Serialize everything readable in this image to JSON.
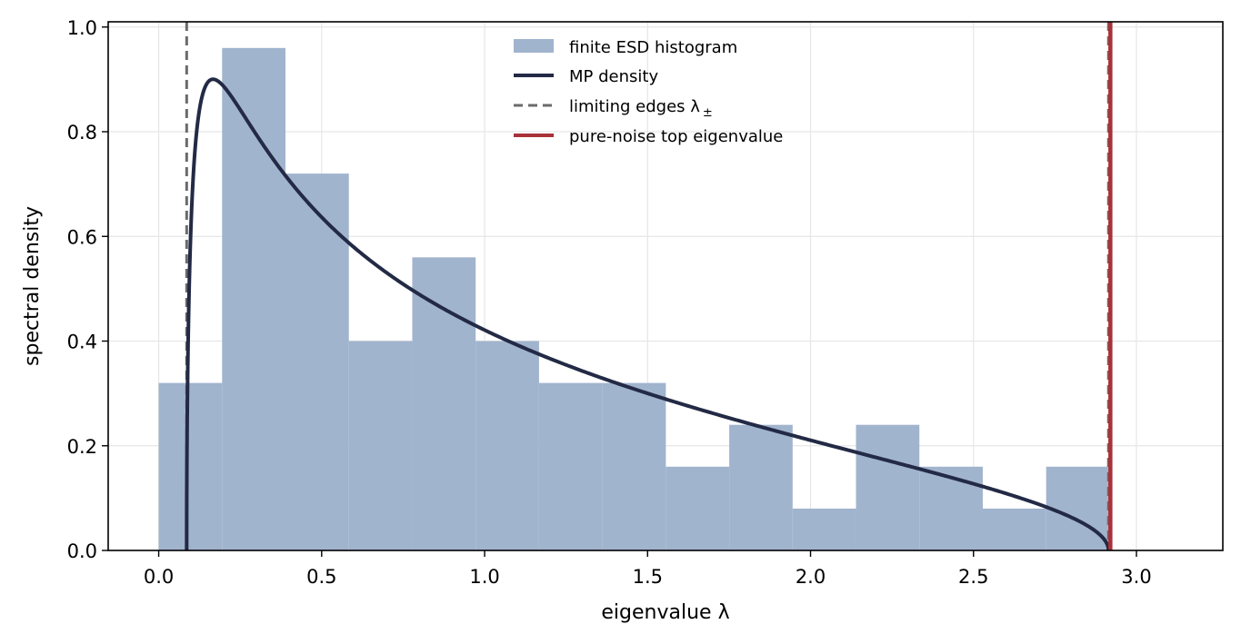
{
  "chart_data": {
    "type": "bar",
    "xlabel": "eigenvalue λ",
    "ylabel": "spectral density",
    "xlim": [
      -0.155,
      3.265
    ],
    "ylim": [
      0.0,
      1.01
    ],
    "grid": true,
    "legend_position": "top-center",
    "x_ticks": [
      "0.0",
      "0.5",
      "1.0",
      "1.5",
      "2.0",
      "2.5",
      "3.0"
    ],
    "x_tick_values": [
      0.0,
      0.5,
      1.0,
      1.5,
      2.0,
      2.5,
      3.0
    ],
    "y_ticks": [
      "0.0",
      "0.2",
      "0.4",
      "0.6",
      "0.8",
      "1.0"
    ],
    "y_tick_values": [
      0.0,
      0.2,
      0.4,
      0.6,
      0.8,
      1.0
    ],
    "histogram": {
      "name": "finite ESD histogram",
      "color": "#a1b4ce",
      "bin_edges": [
        0.0,
        0.1945,
        0.389,
        0.5835,
        0.778,
        0.9725,
        1.167,
        1.3615,
        1.556,
        1.7505,
        1.945,
        2.1395,
        2.334,
        2.5285,
        2.723,
        2.9175
      ],
      "values": [
        0.32,
        0.96,
        0.72,
        0.4,
        0.56,
        0.4,
        0.32,
        0.32,
        0.16,
        0.24,
        0.08,
        0.24,
        0.16,
        0.08,
        0.16
      ]
    },
    "mp_density": {
      "name": "MP density",
      "color": "#232a45",
      "ratio": 0.5,
      "sigma2": 1.0,
      "lambda_minus": 0.0858,
      "lambda_plus": 2.9142
    },
    "edges": {
      "name": "limiting edges λ ±",
      "color": "#6b6b6b",
      "values": [
        0.0858,
        2.9142
      ]
    },
    "top_eigenvalue": {
      "name": "pure-noise top eigenvalue",
      "color": "#a83238",
      "value": 2.92
    }
  },
  "legend": {
    "hist_label": "finite ESD histogram",
    "mp_label": "MP density",
    "edges_label_main": "limiting edges λ",
    "edges_label_sub": "±",
    "top_label": "pure-noise top eigenvalue"
  },
  "axes": {
    "xlabel": "eigenvalue λ",
    "ylabel": "spectral density"
  }
}
